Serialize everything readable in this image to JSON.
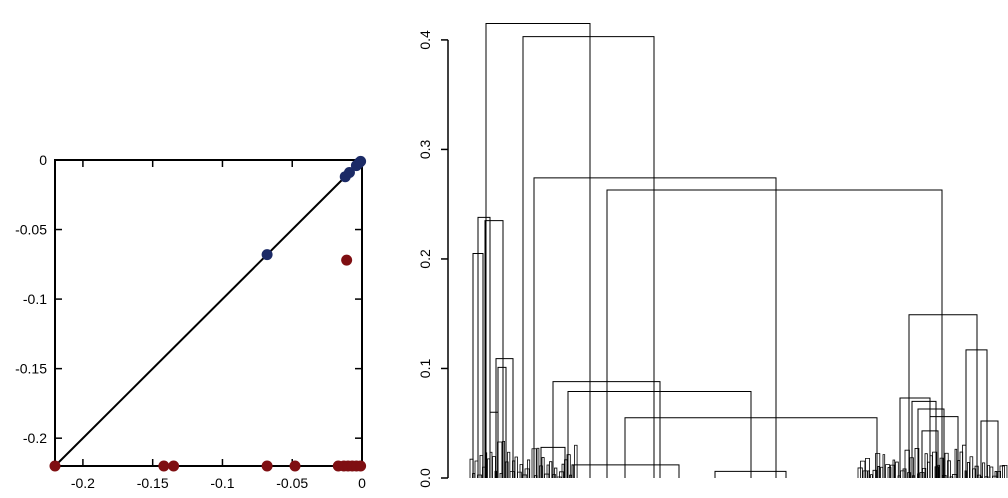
{
  "chart_data": [
    {
      "type": "scatter",
      "title": "",
      "xlabel": "",
      "ylabel": "",
      "xlim": [
        -0.22,
        0.0
      ],
      "ylim": [
        -0.22,
        0.0
      ],
      "x_ticks": [
        -0.2,
        -0.15,
        -0.1,
        -0.05,
        0
      ],
      "x_tick_labels": [
        "-0.2",
        "-0.15",
        "-0.1",
        "-0.05",
        "0"
      ],
      "y_ticks": [
        0,
        -0.05,
        -0.1,
        -0.15,
        -0.2
      ],
      "y_tick_labels": [
        "0",
        "-0.05",
        "-0.1",
        "-0.15",
        "-0.2"
      ],
      "reference_line": {
        "from": [
          -0.22,
          -0.22
        ],
        "to": [
          0.0,
          0.0
        ]
      },
      "series": [
        {
          "color": "#1b2a66",
          "points": [
            [
              -0.068,
              -0.068
            ],
            [
              -0.012,
              -0.012
            ],
            [
              -0.009,
              -0.009
            ],
            [
              -0.004,
              -0.004
            ],
            [
              -0.002,
              -0.002
            ],
            [
              -0.001,
              -0.001
            ]
          ]
        },
        {
          "color": "#7f0f12",
          "points": [
            [
              -0.22,
              -0.22
            ],
            [
              -0.142,
              -0.22
            ],
            [
              -0.135,
              -0.22
            ],
            [
              -0.068,
              -0.22
            ],
            [
              -0.048,
              -0.22
            ],
            [
              -0.017,
              -0.22
            ],
            [
              -0.013,
              -0.22
            ],
            [
              -0.01,
              -0.22
            ],
            [
              -0.007,
              -0.22
            ],
            [
              -0.004,
              -0.22
            ],
            [
              -0.001,
              -0.22
            ],
            [
              -0.011,
              -0.072
            ]
          ]
        }
      ]
    },
    {
      "type": "dendrogram",
      "title": "",
      "ylabel": "",
      "ylim": [
        0.0,
        0.42
      ],
      "y_ticks": [
        0.0,
        0.1,
        0.2,
        0.3,
        0.4
      ],
      "y_tick_labels": [
        "0.0",
        "0.1",
        "0.2",
        "0.3",
        "0.4"
      ],
      "leaf_count": 100,
      "merges": [
        {
          "x1": 473,
          "x2": 483,
          "h": 0.205
        },
        {
          "x1": 478,
          "x2": 490,
          "h": 0.238
        },
        {
          "x1": 485,
          "x2": 503,
          "h": 0.235
        },
        {
          "x1": 496,
          "x2": 513,
          "h": 0.109
        },
        {
          "x1": 498,
          "x2": 506,
          "h": 0.101
        },
        {
          "x1": 490,
          "x2": 498,
          "h": 0.06
        },
        {
          "x1": 486,
          "x2": 590,
          "h": 0.415
        },
        {
          "x1": 523,
          "x2": 654,
          "h": 0.403
        },
        {
          "x1": 534,
          "x2": 776,
          "h": 0.274
        },
        {
          "x1": 607,
          "x2": 942,
          "h": 0.263
        },
        {
          "x1": 553,
          "x2": 660,
          "h": 0.088
        },
        {
          "x1": 568,
          "x2": 751,
          "h": 0.079
        },
        {
          "x1": 625,
          "x2": 877,
          "h": 0.055
        },
        {
          "x1": 541,
          "x2": 565,
          "h": 0.028
        },
        {
          "x1": 572,
          "x2": 679,
          "h": 0.012
        },
        {
          "x1": 715,
          "x2": 786,
          "h": 0.006
        },
        {
          "x1": 909,
          "x2": 977,
          "h": 0.149
        },
        {
          "x1": 966,
          "x2": 987,
          "h": 0.117
        },
        {
          "x1": 981,
          "x2": 998,
          "h": 0.052
        },
        {
          "x1": 900,
          "x2": 930,
          "h": 0.073
        },
        {
          "x1": 912,
          "x2": 936,
          "h": 0.07
        },
        {
          "x1": 918,
          "x2": 944,
          "h": 0.063
        },
        {
          "x1": 930,
          "x2": 958,
          "h": 0.056
        },
        {
          "x1": 922,
          "x2": 938,
          "h": 0.043
        }
      ]
    }
  ]
}
